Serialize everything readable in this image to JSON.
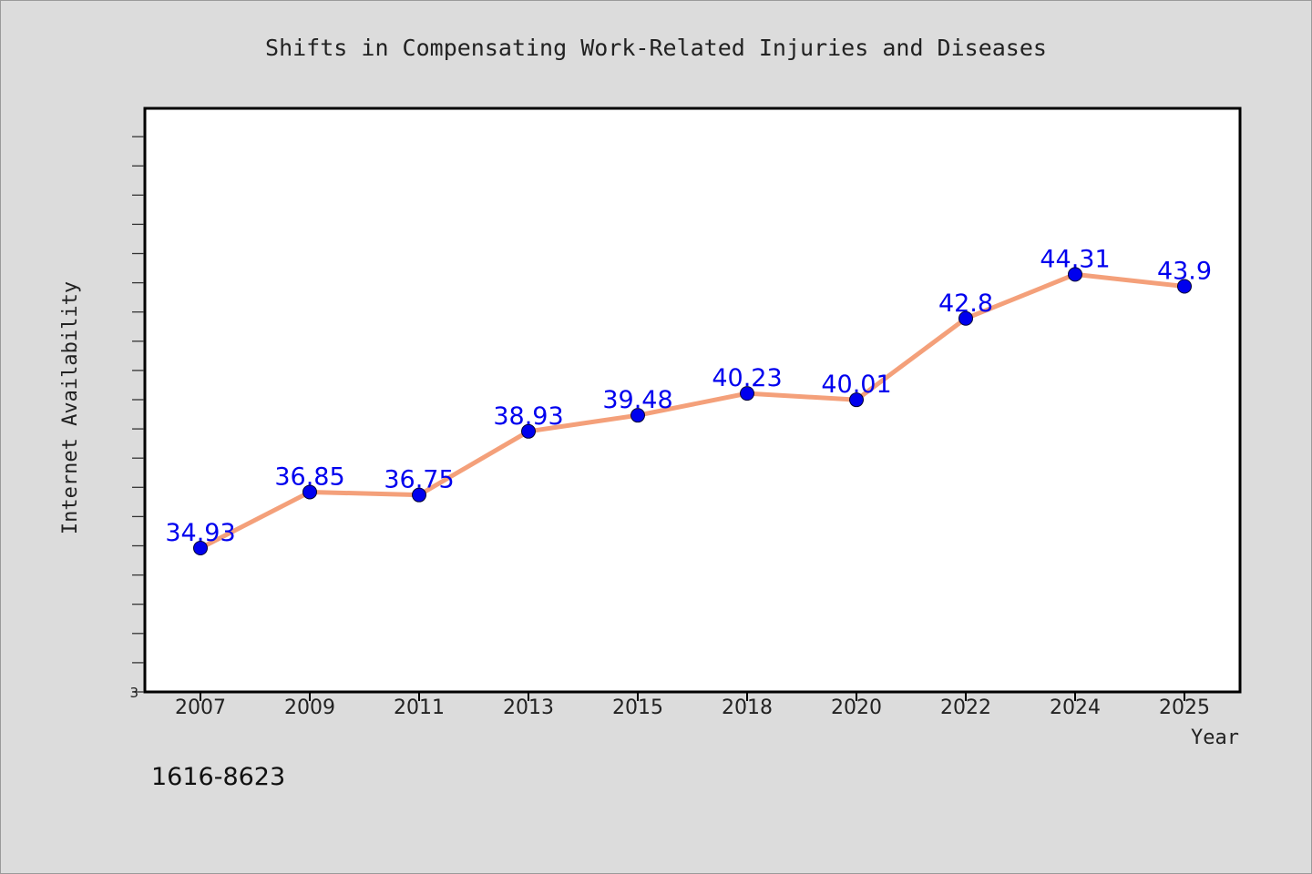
{
  "chart_data": {
    "type": "line",
    "title": "Shifts in Compensating Work-Related Injuries and Diseases",
    "xlabel": "Year",
    "ylabel": "Internet Availability",
    "categories": [
      "2007",
      "2009",
      "2011",
      "2013",
      "2015",
      "2018",
      "2020",
      "2022",
      "2024",
      "2025"
    ],
    "series": [
      {
        "values": [
          34.93,
          36.85,
          36.75,
          38.93,
          39.48,
          40.23,
          40.01,
          42.8,
          44.31,
          43.9
        ]
      }
    ],
    "y_tick_labels": [
      "3"
    ],
    "ylim": [
      30,
      50
    ],
    "grid": false,
    "line_color": "#f4a07a",
    "marker_color": "#0000ee",
    "label_color": "#0000ee"
  },
  "footer_text": "1616-8623"
}
